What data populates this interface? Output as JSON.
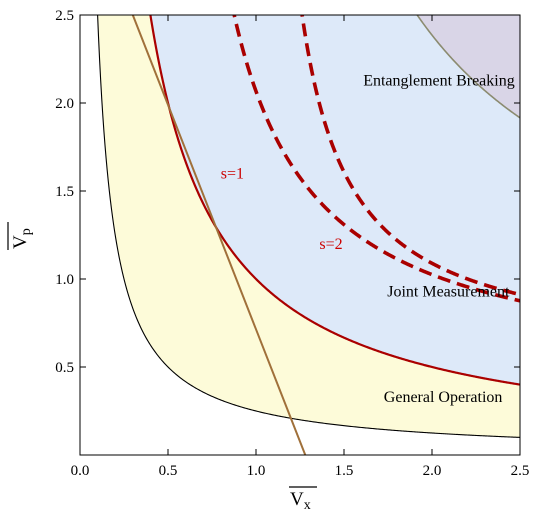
{
  "chart_data": {
    "type": "area",
    "xlim": [
      0.0,
      2.5
    ],
    "ylim": [
      0.0,
      2.5
    ],
    "xticks": [
      {
        "value": 0.0,
        "label": "0.0"
      },
      {
        "value": 0.5,
        "label": "0.5"
      },
      {
        "value": 1.0,
        "label": "1.0"
      },
      {
        "value": 1.5,
        "label": "1.5"
      },
      {
        "value": 2.0,
        "label": "2.0"
      },
      {
        "value": 2.5,
        "label": "2.5"
      }
    ],
    "yticks": [
      {
        "value": 0.5,
        "label": "0.5"
      },
      {
        "value": 1.0,
        "label": "1.0"
      },
      {
        "value": 1.5,
        "label": "1.5"
      },
      {
        "value": 2.0,
        "label": "2.0"
      },
      {
        "value": 2.5,
        "label": "2.5"
      }
    ],
    "xlabel": {
      "main": "V",
      "sub": "x",
      "overline": true
    },
    "ylabel": {
      "main": "V",
      "sub": "p",
      "overline": true
    },
    "grid": false,
    "regions": [
      {
        "label": "General Operation",
        "bound_product": 0.25,
        "color": "#fdfbd9",
        "label_at": [
          2.4,
          0.3
        ]
      },
      {
        "label": "Joint Measurement",
        "bound_product": 1.0,
        "color": "#dde9f9",
        "label_at": [
          2.44,
          0.9
        ]
      },
      {
        "label": "Entanglement Breaking",
        "bound_product": 2.5,
        "bound_offset": 0.6,
        "color": "#d9d5e7",
        "label_at": [
          2.47,
          2.1
        ]
      }
    ],
    "series": [
      {
        "label": "",
        "kind": "boundary-general",
        "xy_product": 0.25,
        "color": "#000000",
        "style": "solid",
        "width": 1.1
      },
      {
        "label": "",
        "kind": "boundary-joint",
        "xy_product": 1.0,
        "color": "#aa0000",
        "style": "solid",
        "width": 2.2
      },
      {
        "label": "",
        "kind": "boundary-eb",
        "xy_product": 2.5,
        "offset": 0.6,
        "color": "#8b8b70",
        "style": "solid",
        "width": 1.6
      },
      {
        "label": "",
        "kind": "line",
        "points": [
          [
            0.3,
            2.5
          ],
          [
            1.28,
            0.0
          ]
        ],
        "color": "#a0703a",
        "style": "solid",
        "width": 2.0
      },
      {
        "label": "s=1",
        "kind": "dashed",
        "xy_product": 1.0,
        "asymptote_x": 0.4,
        "asymptote_y": 0.4,
        "color": "#aa0000",
        "style": "dashed",
        "width": 3.6,
        "label_at": [
          0.8,
          1.57
        ]
      },
      {
        "label": "s=2",
        "kind": "dashed",
        "xy_product": 0.55,
        "asymptote_x": 0.98,
        "asymptote_y": 0.55,
        "color": "#aa0000",
        "style": "dashed",
        "width": 3.6,
        "label_at": [
          1.36,
          1.17
        ]
      }
    ]
  }
}
